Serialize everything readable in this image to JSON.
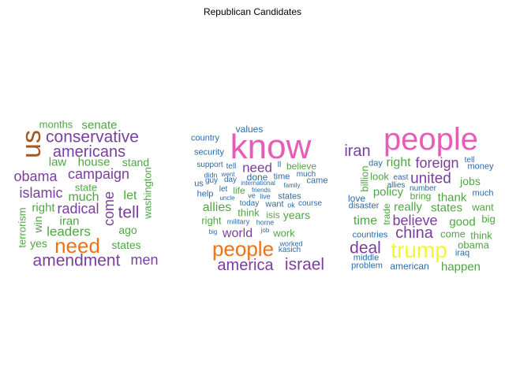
{
  "title": "Republican Candidates",
  "palette": {
    "brown": "#a6561f",
    "purple": "#7a3e9e",
    "green": "#4ea642",
    "blue": "#2d6aa8",
    "orange": "#ef7215",
    "pink": "#e85bb6",
    "yellow": "#f5f534"
  },
  "clouds": [
    {
      "name": "cloud-1",
      "words": [
        {
          "text": "us",
          "color": "brown",
          "size": 34
        },
        {
          "text": "need",
          "color": "orange",
          "size": 26
        },
        {
          "text": "conservative",
          "color": "purple",
          "size": 21
        },
        {
          "text": "americans",
          "color": "purple",
          "size": 20
        },
        {
          "text": "campaign",
          "color": "purple",
          "size": 18
        },
        {
          "text": "obama",
          "color": "purple",
          "size": 18
        },
        {
          "text": "islamic",
          "color": "purple",
          "size": 18
        },
        {
          "text": "radical",
          "color": "purple",
          "size": 18
        },
        {
          "text": "tell",
          "color": "purple",
          "size": 21
        },
        {
          "text": "amendment",
          "color": "purple",
          "size": 21
        },
        {
          "text": "men",
          "color": "purple",
          "size": 18
        },
        {
          "text": "come",
          "color": "purple",
          "size": 18
        },
        {
          "text": "leaders",
          "color": "green",
          "size": 17
        },
        {
          "text": "senate",
          "color": "green",
          "size": 15
        },
        {
          "text": "months",
          "color": "green",
          "size": 13
        },
        {
          "text": "law",
          "color": "green",
          "size": 15
        },
        {
          "text": "house",
          "color": "green",
          "size": 15
        },
        {
          "text": "stand",
          "color": "green",
          "size": 14
        },
        {
          "text": "state",
          "color": "green",
          "size": 13
        },
        {
          "text": "much",
          "color": "green",
          "size": 16
        },
        {
          "text": "let",
          "color": "green",
          "size": 16
        },
        {
          "text": "right",
          "color": "green",
          "size": 15
        },
        {
          "text": "iran",
          "color": "green",
          "size": 15
        },
        {
          "text": "ago",
          "color": "green",
          "size": 14
        },
        {
          "text": "yes",
          "color": "green",
          "size": 14
        },
        {
          "text": "states",
          "color": "green",
          "size": 14
        },
        {
          "text": "win",
          "color": "green",
          "size": 14
        },
        {
          "text": "terrorism",
          "color": "green",
          "size": 13
        },
        {
          "text": "washington",
          "color": "green",
          "size": 13
        }
      ]
    },
    {
      "name": "cloud-2",
      "words": [
        {
          "text": "know",
          "color": "pink",
          "size": 44
        },
        {
          "text": "people",
          "color": "orange",
          "size": 26
        },
        {
          "text": "america",
          "color": "purple",
          "size": 20
        },
        {
          "text": "israel",
          "color": "purple",
          "size": 21
        },
        {
          "text": "world",
          "color": "purple",
          "size": 16
        },
        {
          "text": "need",
          "color": "purple",
          "size": 17
        },
        {
          "text": "allies",
          "color": "green",
          "size": 16
        },
        {
          "text": "values",
          "color": "blue",
          "size": 12
        },
        {
          "text": "country",
          "color": "blue",
          "size": 11
        },
        {
          "text": "security",
          "color": "blue",
          "size": 11
        },
        {
          "text": "support",
          "color": "blue",
          "size": 10
        },
        {
          "text": "tell",
          "color": "blue",
          "size": 10
        },
        {
          "text": "ll",
          "color": "blue",
          "size": 10
        },
        {
          "text": "believe",
          "color": "green",
          "size": 12
        },
        {
          "text": "didn",
          "color": "blue",
          "size": 9
        },
        {
          "text": "went",
          "color": "blue",
          "size": 8
        },
        {
          "text": "done",
          "color": "blue",
          "size": 12
        },
        {
          "text": "time",
          "color": "blue",
          "size": 11
        },
        {
          "text": "much",
          "color": "blue",
          "size": 10
        },
        {
          "text": "us",
          "color": "blue",
          "size": 11
        },
        {
          "text": "guy",
          "color": "blue",
          "size": 10
        },
        {
          "text": "day",
          "color": "blue",
          "size": 10
        },
        {
          "text": "international",
          "color": "blue",
          "size": 8
        },
        {
          "text": "came",
          "color": "blue",
          "size": 11
        },
        {
          "text": "help",
          "color": "blue",
          "size": 11
        },
        {
          "text": "let",
          "color": "blue",
          "size": 10
        },
        {
          "text": "life",
          "color": "green",
          "size": 12
        },
        {
          "text": "friends",
          "color": "blue",
          "size": 8
        },
        {
          "text": "family",
          "color": "blue",
          "size": 8
        },
        {
          "text": "uncle",
          "color": "blue",
          "size": 8
        },
        {
          "text": "ve",
          "color": "blue",
          "size": 9
        },
        {
          "text": "live",
          "color": "blue",
          "size": 9
        },
        {
          "text": "states",
          "color": "blue",
          "size": 11
        },
        {
          "text": "think",
          "color": "green",
          "size": 13
        },
        {
          "text": "isis",
          "color": "green",
          "size": 12
        },
        {
          "text": "years",
          "color": "green",
          "size": 14
        },
        {
          "text": "today",
          "color": "blue",
          "size": 10
        },
        {
          "text": "want",
          "color": "blue",
          "size": 11
        },
        {
          "text": "ok",
          "color": "blue",
          "size": 9
        },
        {
          "text": "course",
          "color": "blue",
          "size": 10
        },
        {
          "text": "right",
          "color": "green",
          "size": 13
        },
        {
          "text": "military",
          "color": "blue",
          "size": 9
        },
        {
          "text": "home",
          "color": "blue",
          "size": 9
        },
        {
          "text": "big",
          "color": "blue",
          "size": 8
        },
        {
          "text": "job",
          "color": "blue",
          "size": 8
        },
        {
          "text": "work",
          "color": "green",
          "size": 13
        },
        {
          "text": "worked",
          "color": "blue",
          "size": 9
        },
        {
          "text": "kasich",
          "color": "blue",
          "size": 10
        }
      ]
    },
    {
      "name": "cloud-3",
      "words": [
        {
          "text": "people",
          "color": "pink",
          "size": 40
        },
        {
          "text": "trump",
          "color": "yellow",
          "size": 28
        },
        {
          "text": "deal",
          "color": "purple",
          "size": 21
        },
        {
          "text": "china",
          "color": "purple",
          "size": 20
        },
        {
          "text": "iran",
          "color": "purple",
          "size": 20
        },
        {
          "text": "united",
          "color": "purple",
          "size": 19
        },
        {
          "text": "foreign",
          "color": "purple",
          "size": 18
        },
        {
          "text": "believe",
          "color": "purple",
          "size": 18
        },
        {
          "text": "right",
          "color": "green",
          "size": 16
        },
        {
          "text": "time",
          "color": "green",
          "size": 16
        },
        {
          "text": "policy",
          "color": "green",
          "size": 15
        },
        {
          "text": "states",
          "color": "green",
          "size": 15
        },
        {
          "text": "thank",
          "color": "green",
          "size": 15
        },
        {
          "text": "really",
          "color": "green",
          "size": 15
        },
        {
          "text": "good",
          "color": "green",
          "size": 15
        },
        {
          "text": "happen",
          "color": "green",
          "size": 15
        },
        {
          "text": "jobs",
          "color": "green",
          "size": 14
        },
        {
          "text": "obama",
          "color": "green",
          "size": 13
        },
        {
          "text": "look",
          "color": "green",
          "size": 13
        },
        {
          "text": "come",
          "color": "green",
          "size": 13
        },
        {
          "text": "think",
          "color": "green",
          "size": 13
        },
        {
          "text": "want",
          "color": "green",
          "size": 13
        },
        {
          "text": "big",
          "color": "green",
          "size": 13
        },
        {
          "text": "bring",
          "color": "green",
          "size": 12
        },
        {
          "text": "love",
          "color": "blue",
          "size": 12
        },
        {
          "text": "billion",
          "color": "green",
          "size": 13
        },
        {
          "text": "trade",
          "color": "green",
          "size": 12
        },
        {
          "text": "day",
          "color": "blue",
          "size": 11
        },
        {
          "text": "tell",
          "color": "blue",
          "size": 10
        },
        {
          "text": "money",
          "color": "blue",
          "size": 11
        },
        {
          "text": "east",
          "color": "blue",
          "size": 10
        },
        {
          "text": "allies",
          "color": "blue",
          "size": 10
        },
        {
          "text": "number",
          "color": "blue",
          "size": 10
        },
        {
          "text": "much",
          "color": "blue",
          "size": 11
        },
        {
          "text": "disaster",
          "color": "blue",
          "size": 11
        },
        {
          "text": "countries",
          "color": "blue",
          "size": 11
        },
        {
          "text": "middle",
          "color": "blue",
          "size": 11
        },
        {
          "text": "iraq",
          "color": "blue",
          "size": 11
        },
        {
          "text": "problem",
          "color": "blue",
          "size": 11
        },
        {
          "text": "american",
          "color": "blue",
          "size": 12
        }
      ]
    }
  ]
}
